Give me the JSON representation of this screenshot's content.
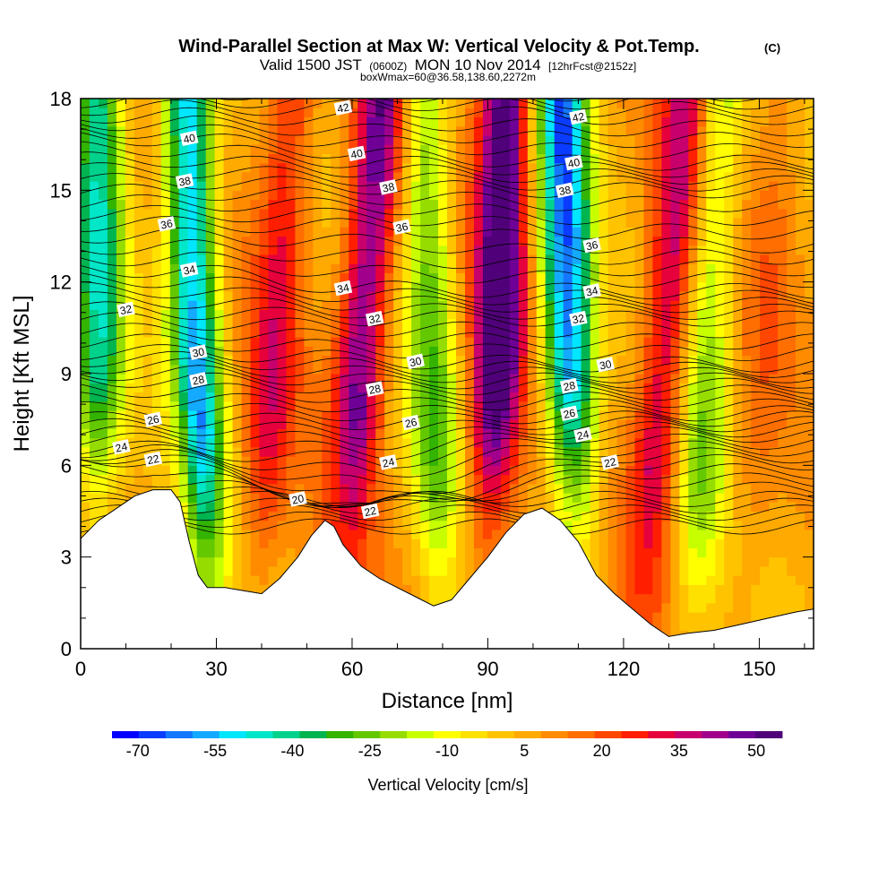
{
  "chart_data": {
    "type": "heatmap",
    "title": "Wind-Parallel Section at Max W: Vertical Velocity & Pot.Temp.",
    "title_mark": "(C)",
    "subtitle": {
      "prefix": "Valid 1500 JST",
      "utc": "(0600Z)",
      "date": "MON 10 Nov 2014",
      "forecast": "[12hrFcst@2152z]"
    },
    "subtitle2": "boxWmax=60@36.58,138.60,2272m",
    "xlabel": "Distance [nm]",
    "ylabel": "Height [Kft MSL]",
    "xlim": [
      0,
      162
    ],
    "ylim": [
      0,
      18
    ],
    "x_ticks": [
      "0",
      "30",
      "60",
      "90",
      "120",
      "150"
    ],
    "x_tick_values": [
      0,
      30,
      60,
      90,
      120,
      150
    ],
    "y_ticks": [
      "0",
      "3",
      "6",
      "9",
      "12",
      "15",
      "18"
    ],
    "y_tick_values": [
      0,
      3,
      6,
      9,
      12,
      15,
      18
    ],
    "colorbar": {
      "label": "Vertical Velocity [cm/s]",
      "min": -75,
      "max": 55,
      "step": 5,
      "tick_labels": [
        "-70",
        "-55",
        "-40",
        "-25",
        "-10",
        "5",
        "20",
        "35",
        "50"
      ],
      "tick_values": [
        -70,
        -55,
        -40,
        -25,
        -10,
        5,
        20,
        35,
        50
      ],
      "colors": [
        "#0000ff",
        "#0a3cff",
        "#1478ff",
        "#14aaff",
        "#00e6ff",
        "#00e6c8",
        "#00d28c",
        "#00b450",
        "#32b400",
        "#64c800",
        "#96dc00",
        "#c8ff00",
        "#ffff00",
        "#ffe100",
        "#ffc300",
        "#ffaa00",
        "#ff8c00",
        "#ff6e00",
        "#ff4600",
        "#ff1e00",
        "#e6003c",
        "#c8006e",
        "#a0008c",
        "#6e0096",
        "#500078"
      ]
    },
    "terrain_kft": [
      [
        0,
        3.6
      ],
      [
        4,
        4.2
      ],
      [
        8,
        4.6
      ],
      [
        12,
        5.0
      ],
      [
        16,
        5.2
      ],
      [
        20,
        5.2
      ],
      [
        22,
        4.8
      ],
      [
        24,
        3.5
      ],
      [
        26,
        2.4
      ],
      [
        28,
        2.0
      ],
      [
        32,
        2.0
      ],
      [
        36,
        1.9
      ],
      [
        40,
        1.8
      ],
      [
        44,
        2.3
      ],
      [
        48,
        3.0
      ],
      [
        51,
        3.7
      ],
      [
        54,
        4.2
      ],
      [
        56,
        4.0
      ],
      [
        58,
        3.4
      ],
      [
        62,
        2.7
      ],
      [
        66,
        2.3
      ],
      [
        70,
        2.0
      ],
      [
        74,
        1.7
      ],
      [
        78,
        1.4
      ],
      [
        82,
        1.6
      ],
      [
        86,
        2.3
      ],
      [
        90,
        3.0
      ],
      [
        94,
        3.8
      ],
      [
        98,
        4.4
      ],
      [
        102,
        4.6
      ],
      [
        106,
        4.2
      ],
      [
        110,
        3.5
      ],
      [
        114,
        2.4
      ],
      [
        118,
        1.8
      ],
      [
        122,
        1.3
      ],
      [
        126,
        0.8
      ],
      [
        130,
        0.4
      ],
      [
        134,
        0.5
      ],
      [
        140,
        0.6
      ],
      [
        146,
        0.8
      ],
      [
        152,
        1.0
      ],
      [
        158,
        1.2
      ],
      [
        162,
        1.3
      ]
    ],
    "updraft_bands": [
      {
        "x0": 61,
        "slope": 0.55,
        "value": 40
      },
      {
        "x0": 92,
        "slope": 0.18,
        "value": 50
      },
      {
        "x0": 42,
        "slope": 0.45,
        "value": 22
      },
      {
        "x0": 128,
        "slope": 0.6,
        "value": 30
      },
      {
        "x0": 150,
        "slope": 0.5,
        "value": 8
      }
    ],
    "downdraft_bands": [
      {
        "x0": 26,
        "slope": -0.25,
        "value": -60
      },
      {
        "x0": 108,
        "slope": -0.15,
        "value": -65
      },
      {
        "x0": 4,
        "slope": 0.0,
        "value": -45
      },
      {
        "x0": 78,
        "slope": -0.2,
        "value": -30
      },
      {
        "x0": 138,
        "slope": 0.3,
        "value": -25
      }
    ],
    "theta_contours": [
      {
        "level": 20,
        "label_x": 48,
        "label_kft": 4.9
      },
      {
        "level": 22,
        "label_x": 16,
        "label_kft": 6.2
      },
      {
        "level": 22,
        "label_x": 64,
        "label_kft": 4.5
      },
      {
        "level": 22,
        "label_x": 117,
        "label_kft": 6.1
      },
      {
        "level": 24,
        "label_x": 9,
        "label_kft": 6.6
      },
      {
        "level": 24,
        "label_x": 68,
        "label_kft": 6.1
      },
      {
        "level": 24,
        "label_x": 111,
        "label_kft": 7.0
      },
      {
        "level": 26,
        "label_x": 16,
        "label_kft": 7.5
      },
      {
        "level": 26,
        "label_x": 73,
        "label_kft": 7.4
      },
      {
        "level": 26,
        "label_x": 108,
        "label_kft": 7.7
      },
      {
        "level": 28,
        "label_x": 26,
        "label_kft": 8.8
      },
      {
        "level": 28,
        "label_x": 65,
        "label_kft": 8.5
      },
      {
        "level": 28,
        "label_x": 108,
        "label_kft": 8.6
      },
      {
        "level": 30,
        "label_x": 26,
        "label_kft": 9.7
      },
      {
        "level": 30,
        "label_x": 74,
        "label_kft": 9.4
      },
      {
        "level": 30,
        "label_x": 116,
        "label_kft": 9.3
      },
      {
        "level": 32,
        "label_x": 10,
        "label_kft": 11.1
      },
      {
        "level": 32,
        "label_x": 65,
        "label_kft": 10.8
      },
      {
        "level": 32,
        "label_x": 110,
        "label_kft": 10.8
      },
      {
        "level": 34,
        "label_x": 24,
        "label_kft": 12.4
      },
      {
        "level": 34,
        "label_x": 58,
        "label_kft": 11.8
      },
      {
        "level": 34,
        "label_x": 113,
        "label_kft": 11.7
      },
      {
        "level": 36,
        "label_x": 19,
        "label_kft": 13.9
      },
      {
        "level": 36,
        "label_x": 71,
        "label_kft": 13.8
      },
      {
        "level": 36,
        "label_x": 113,
        "label_kft": 13.2
      },
      {
        "level": 38,
        "label_x": 23,
        "label_kft": 15.3
      },
      {
        "level": 38,
        "label_x": 68,
        "label_kft": 15.1
      },
      {
        "level": 38,
        "label_x": 107,
        "label_kft": 15.0
      },
      {
        "level": 40,
        "label_x": 24,
        "label_kft": 16.7
      },
      {
        "level": 40,
        "label_x": 61,
        "label_kft": 16.2
      },
      {
        "level": 40,
        "label_x": 109,
        "label_kft": 15.9
      },
      {
        "level": 42,
        "label_x": 58,
        "label_kft": 17.7
      },
      {
        "level": 42,
        "label_x": 110,
        "label_kft": 17.4
      }
    ]
  }
}
